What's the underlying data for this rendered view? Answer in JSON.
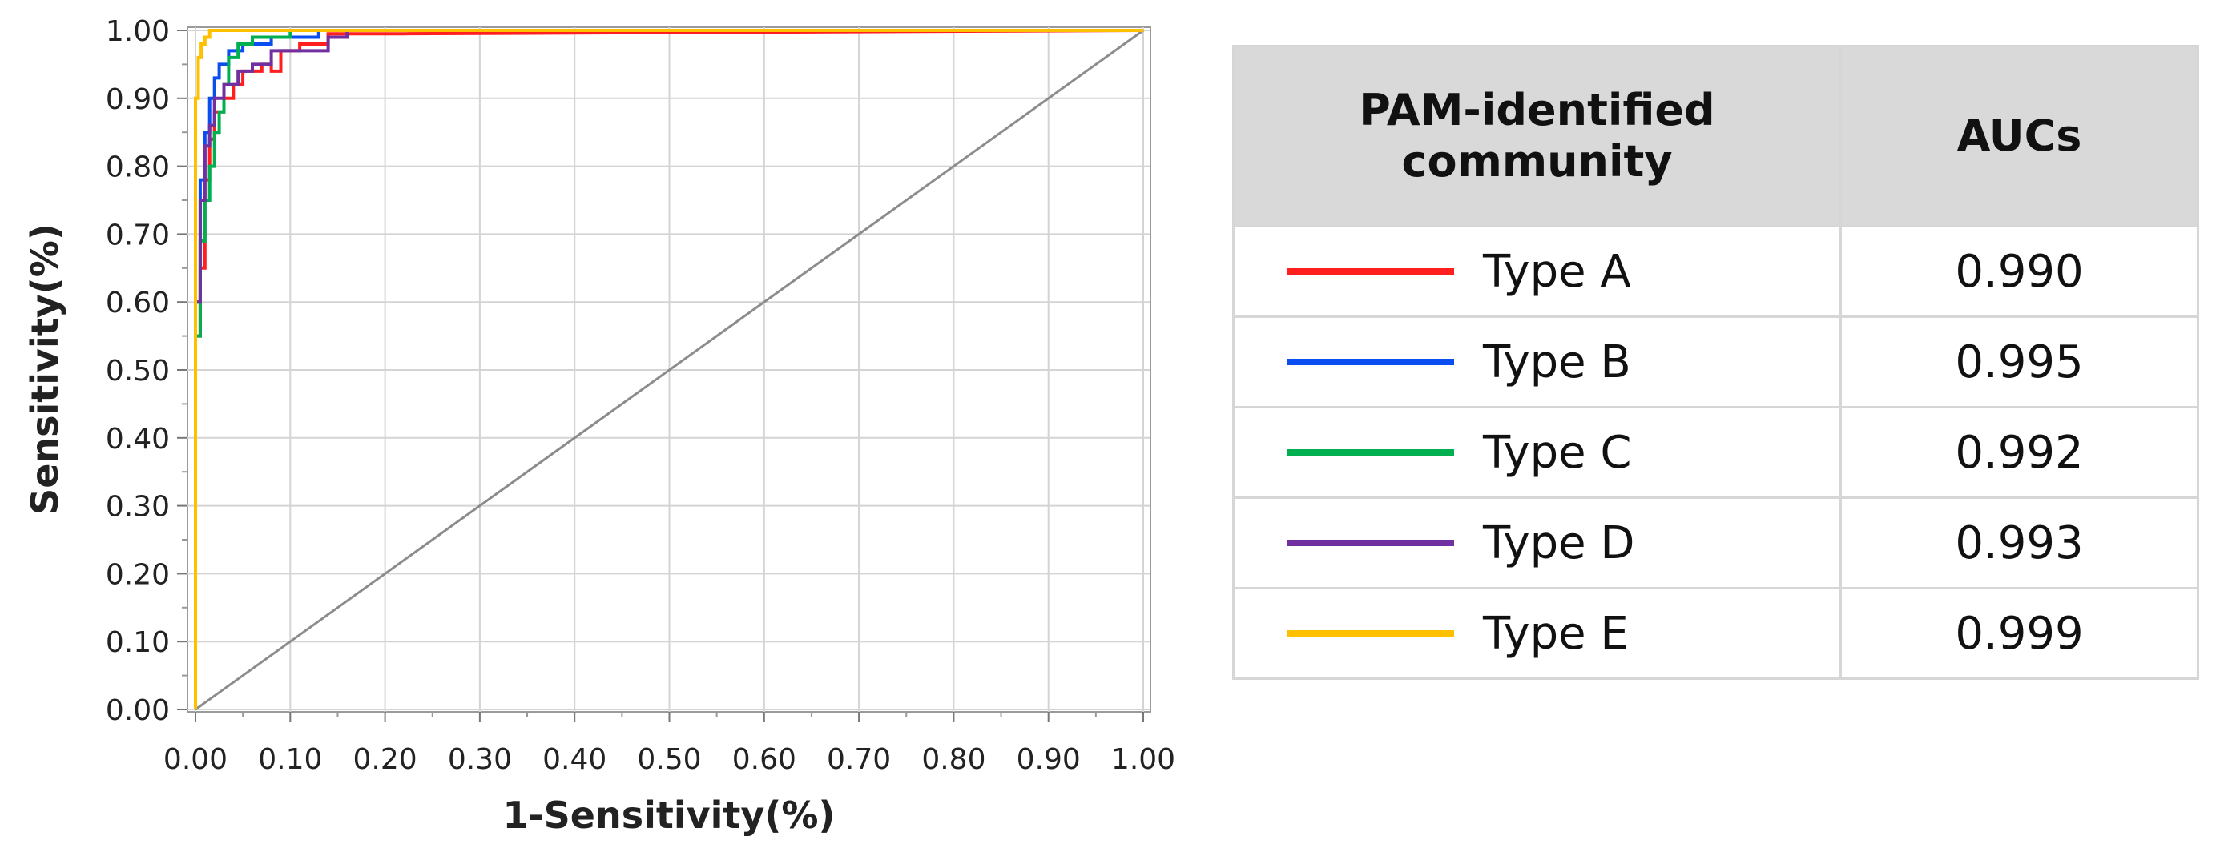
{
  "chart_data": {
    "type": "line",
    "xlabel": "1-Sensitivity(%)",
    "ylabel": "Sensitivity(%)",
    "xlim": [
      0,
      1
    ],
    "ylim": [
      0,
      1
    ],
    "x_ticks": [
      "0.00",
      "0.10",
      "0.20",
      "0.30",
      "0.40",
      "0.50",
      "0.60",
      "0.70",
      "0.80",
      "0.90",
      "1.00"
    ],
    "y_ticks": [
      "0.00",
      "0.10",
      "0.20",
      "0.30",
      "0.40",
      "0.50",
      "0.60",
      "0.70",
      "0.80",
      "0.90",
      "1.00"
    ],
    "grid": true,
    "reference_line": {
      "x": [
        0,
        1
      ],
      "y": [
        0,
        1
      ],
      "color": "#8c8c8c"
    },
    "series": [
      {
        "name": "Type A",
        "color": "#ff1f1f",
        "x": [
          0,
          0,
          0.005,
          0.005,
          0.01,
          0.01,
          0.015,
          0.015,
          0.02,
          0.02,
          0.03,
          0.03,
          0.04,
          0.04,
          0.05,
          0.05,
          0.07,
          0.07,
          0.08,
          0.08,
          0.09,
          0.09,
          0.11,
          0.11,
          0.14,
          0.14,
          0.22,
          1
        ],
        "y": [
          0,
          0.55,
          0.55,
          0.65,
          0.65,
          0.78,
          0.78,
          0.84,
          0.84,
          0.88,
          0.88,
          0.9,
          0.9,
          0.92,
          0.92,
          0.94,
          0.94,
          0.95,
          0.95,
          0.94,
          0.94,
          0.97,
          0.97,
          0.98,
          0.98,
          0.995,
          0.995,
          1
        ]
      },
      {
        "name": "Type B",
        "color": "#0a4df0",
        "x": [
          0,
          0,
          0.005,
          0.005,
          0.01,
          0.01,
          0.015,
          0.015,
          0.02,
          0.02,
          0.025,
          0.025,
          0.035,
          0.035,
          0.05,
          0.05,
          0.08,
          0.08,
          0.13,
          0.13,
          1
        ],
        "y": [
          0,
          0.6,
          0.6,
          0.78,
          0.78,
          0.85,
          0.85,
          0.9,
          0.9,
          0.93,
          0.93,
          0.95,
          0.95,
          0.97,
          0.97,
          0.98,
          0.98,
          0.99,
          0.99,
          1,
          1
        ]
      },
      {
        "name": "Type C",
        "color": "#00b050",
        "x": [
          0,
          0,
          0.005,
          0.005,
          0.01,
          0.01,
          0.015,
          0.015,
          0.02,
          0.02,
          0.025,
          0.025,
          0.03,
          0.03,
          0.035,
          0.035,
          0.045,
          0.045,
          0.06,
          0.06,
          0.1,
          0.1,
          1
        ],
        "y": [
          0,
          0.55,
          0.55,
          0.69,
          0.69,
          0.75,
          0.75,
          0.8,
          0.8,
          0.85,
          0.85,
          0.88,
          0.88,
          0.92,
          0.92,
          0.96,
          0.96,
          0.98,
          0.98,
          0.99,
          0.99,
          1,
          1
        ]
      },
      {
        "name": "Type D",
        "color": "#7030a0",
        "x": [
          0,
          0,
          0.005,
          0.005,
          0.01,
          0.01,
          0.015,
          0.015,
          0.02,
          0.02,
          0.03,
          0.03,
          0.045,
          0.045,
          0.06,
          0.06,
          0.08,
          0.08,
          0.14,
          0.14,
          0.16,
          0.16,
          1
        ],
        "y": [
          0,
          0.6,
          0.6,
          0.75,
          0.75,
          0.83,
          0.83,
          0.86,
          0.86,
          0.9,
          0.9,
          0.92,
          0.92,
          0.94,
          0.94,
          0.95,
          0.95,
          0.97,
          0.97,
          0.99,
          0.99,
          1,
          1
        ]
      },
      {
        "name": "Type E",
        "color": "#ffc000",
        "x": [
          0,
          0,
          0.003,
          0.003,
          0.006,
          0.006,
          0.01,
          0.01,
          0.015,
          0.015,
          1
        ],
        "y": [
          0,
          0.9,
          0.9,
          0.96,
          0.96,
          0.98,
          0.98,
          0.99,
          0.99,
          1,
          1
        ]
      }
    ]
  },
  "table": {
    "header_community": "PAM-identified community",
    "header_auc": "AUCs",
    "rows": [
      {
        "label": "Type A",
        "auc": "0.990",
        "color": "#ff1f1f"
      },
      {
        "label": "Type B",
        "auc": "0.995",
        "color": "#0a4df0"
      },
      {
        "label": "Type C",
        "auc": "0.992",
        "color": "#00b050"
      },
      {
        "label": "Type D",
        "auc": "0.993",
        "color": "#7030a0"
      },
      {
        "label": "Type E",
        "auc": "0.999",
        "color": "#ffc000"
      }
    ]
  }
}
